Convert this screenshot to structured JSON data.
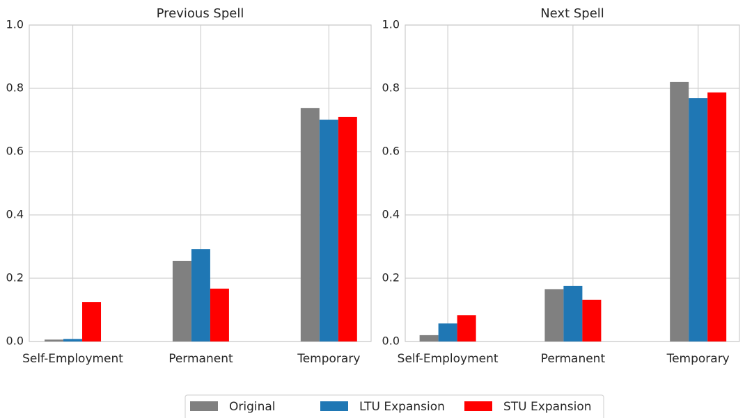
{
  "chart_data": [
    {
      "type": "bar",
      "title": "Previous Spell",
      "categories": [
        "Self-Employment",
        "Permanent",
        "Temporary"
      ],
      "series": [
        {
          "name": "Original",
          "color": "#808080",
          "values": [
            0.006,
            0.255,
            0.738
          ]
        },
        {
          "name": "LTU Expansion",
          "color": "#1f77b4",
          "values": [
            0.008,
            0.292,
            0.701
          ]
        },
        {
          "name": "STU Expansion",
          "color": "#ff0000",
          "values": [
            0.125,
            0.167,
            0.71
          ]
        }
      ],
      "ylim": [
        0,
        1.0
      ],
      "yticks": [
        {
          "value": 0,
          "label": "0.0"
        },
        0.2,
        0.4,
        0.6,
        0.8,
        {
          "value": 1,
          "label": "1.0"
        }
      ],
      "grid": true
    },
    {
      "type": "bar",
      "title": "Next Spell",
      "categories": [
        "Self-Employment",
        "Permanent",
        "Temporary"
      ],
      "series": [
        {
          "color": "#808080",
          "values": [
            0.02,
            0.165,
            0.82
          ]
        },
        {
          "color": "#1f77b4",
          "values": [
            0.057,
            0.176,
            0.769
          ]
        },
        {
          "color": "#ff0000",
          "values": [
            0.083,
            0.132,
            0.787
          ]
        }
      ],
      "ylim": [
        0,
        1.0
      ],
      "yticks": [
        {
          "value": 0,
          "label": "0.0"
        },
        0.2,
        0.4,
        0.6,
        0.8,
        {
          "value": 1,
          "label": "1.0"
        }
      ],
      "grid": true
    }
  ]
}
